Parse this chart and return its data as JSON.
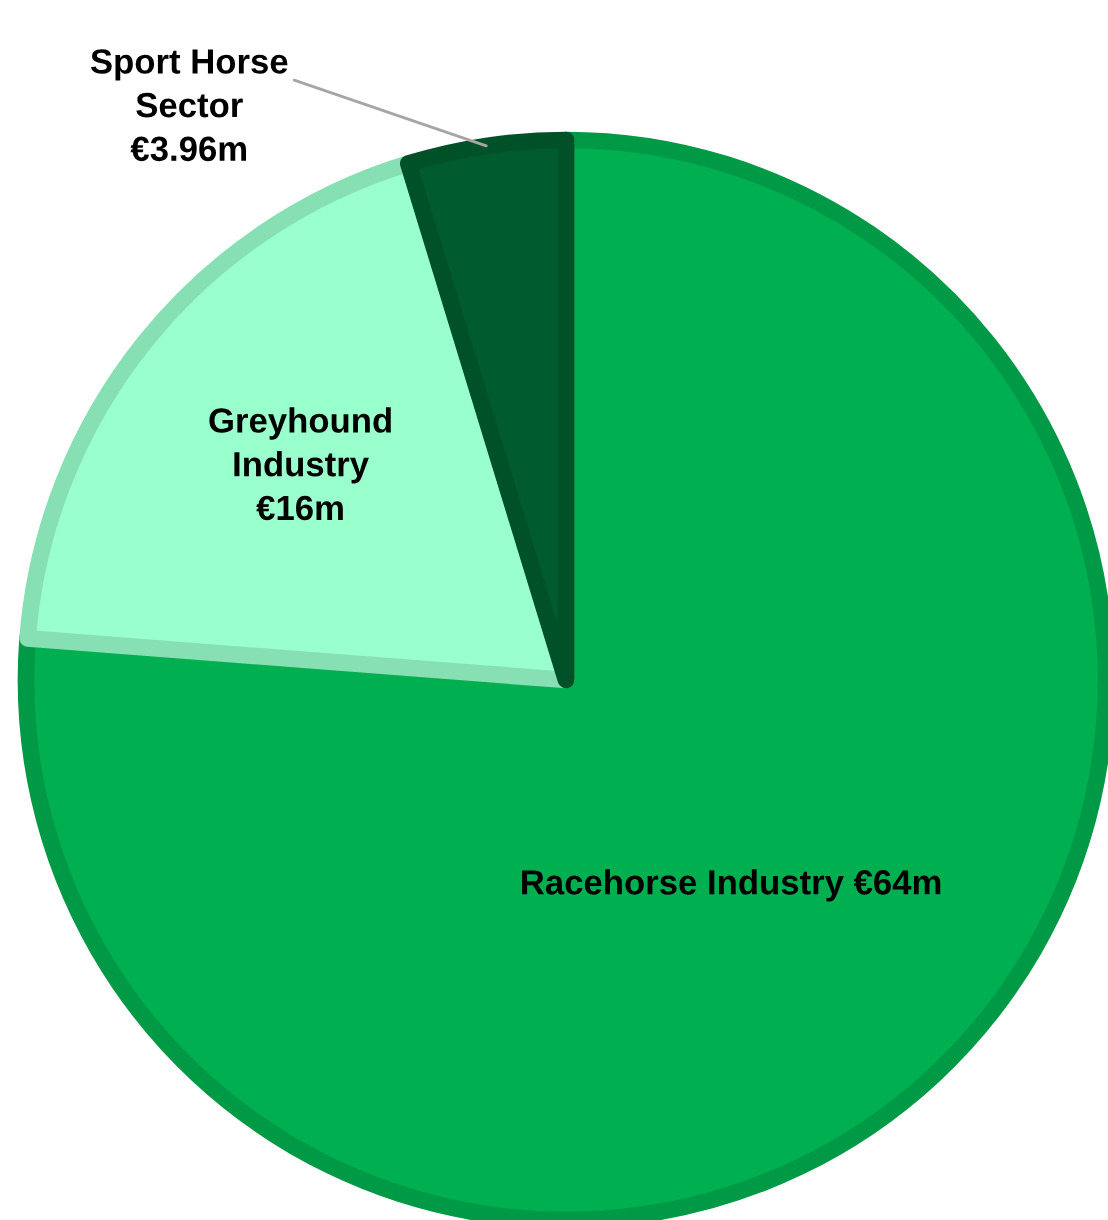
{
  "chart_data": {
    "type": "pie",
    "categories": [
      "Racehorse Industry",
      "Greyhound\nIndustry",
      "Sport Horse\nSector"
    ],
    "values": [
      64,
      16,
      3.96
    ],
    "value_labels": [
      "€64m",
      "€16m",
      "€3.96m"
    ],
    "colors": [
      "#00b050",
      "#99ffcc",
      "#005c2e"
    ],
    "legend": false
  }
}
